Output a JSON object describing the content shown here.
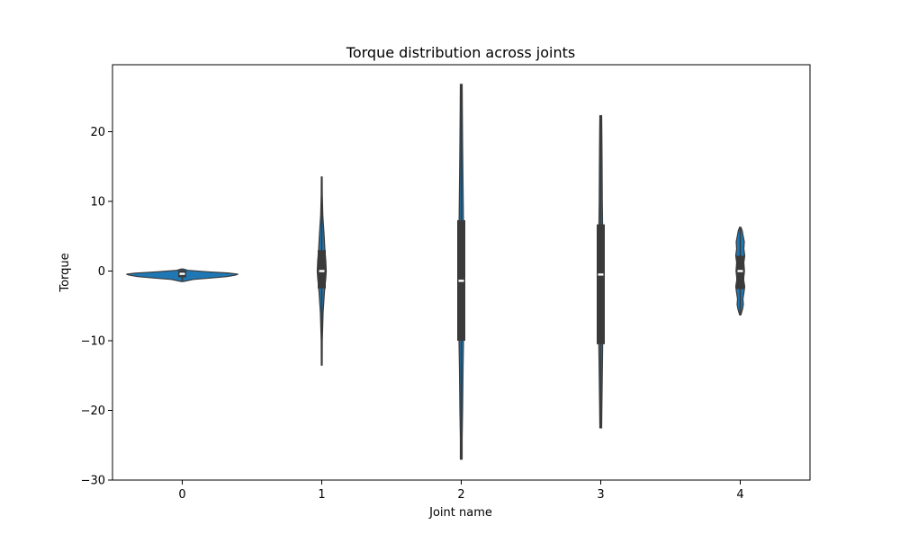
{
  "chart_data": {
    "type": "violin",
    "title": "Torque distribution across joints",
    "xlabel": "Joint name",
    "ylabel": "Torque",
    "categories": [
      "0",
      "1",
      "2",
      "3",
      "4"
    ],
    "ylim": [
      -30,
      30
    ],
    "yticks": [
      -30,
      -20,
      -10,
      0,
      10,
      20
    ],
    "ytick_labels": [
      "−30",
      "−20",
      "−10",
      "0",
      "10",
      "20"
    ],
    "grid": false,
    "legend": "none",
    "colors": {
      "violin_fill": "#1f77b4",
      "box": "#3a3a3a",
      "median": "#ffffff",
      "axes": "#000000"
    },
    "violins": [
      {
        "category": "0",
        "min": -1.5,
        "q1": -0.9,
        "median": -0.4,
        "q3": 0.1,
        "max": 0.3,
        "profile": [
          [
            -1.5,
            0.02
          ],
          [
            -1.2,
            0.2
          ],
          [
            -1.0,
            0.5
          ],
          [
            -0.8,
            0.8
          ],
          [
            -0.6,
            0.95
          ],
          [
            -0.45,
            1.0
          ],
          [
            -0.3,
            0.85
          ],
          [
            -0.1,
            0.45
          ],
          [
            0.1,
            0.1
          ],
          [
            0.3,
            0.02
          ]
        ]
      },
      {
        "category": "1",
        "min": -13.5,
        "q1": -2.5,
        "median": 0.0,
        "q3": 3.0,
        "max": 13.5,
        "profile": [
          [
            -13.5,
            0.1
          ],
          [
            -10,
            0.12
          ],
          [
            -6,
            0.3
          ],
          [
            -3,
            0.6
          ],
          [
            -1,
            0.9
          ],
          [
            0,
            1.0
          ],
          [
            1.5,
            0.9
          ],
          [
            3,
            0.7
          ],
          [
            5,
            0.55
          ],
          [
            8,
            0.25
          ],
          [
            11,
            0.12
          ],
          [
            13.5,
            0.1
          ]
        ]
      },
      {
        "category": "2",
        "min": -27.0,
        "q1": -10.0,
        "median": -1.4,
        "q3": 7.3,
        "max": 26.8,
        "profile": [
          [
            -27,
            0.2
          ],
          [
            -24,
            0.2
          ],
          [
            -20,
            0.3
          ],
          [
            -14,
            0.4
          ],
          [
            -10,
            0.5
          ],
          [
            -4,
            0.55
          ],
          [
            0,
            0.55
          ],
          [
            6,
            0.5
          ],
          [
            12,
            0.4
          ],
          [
            18,
            0.3
          ],
          [
            23,
            0.25
          ],
          [
            26.8,
            0.2
          ]
        ]
      },
      {
        "category": "3",
        "min": -22.5,
        "q1": -10.5,
        "median": -0.5,
        "q3": 6.7,
        "max": 22.3,
        "profile": [
          [
            -22.5,
            0.2
          ],
          [
            -20,
            0.25
          ],
          [
            -15,
            0.35
          ],
          [
            -10,
            0.45
          ],
          [
            -5,
            0.5
          ],
          [
            0,
            0.5
          ],
          [
            5,
            0.45
          ],
          [
            10,
            0.35
          ],
          [
            15,
            0.3
          ],
          [
            20,
            0.25
          ],
          [
            22.3,
            0.2
          ]
        ]
      },
      {
        "category": "4",
        "min": -6.3,
        "q1": -2.6,
        "median": 0.0,
        "q3": 2.2,
        "max": 6.3,
        "profile": [
          [
            -6.3,
            0.15
          ],
          [
            -5.5,
            0.5
          ],
          [
            -4.8,
            0.7
          ],
          [
            -4,
            0.6
          ],
          [
            -3,
            0.85
          ],
          [
            -2.2,
            1.0
          ],
          [
            -1.2,
            0.75
          ],
          [
            0,
            0.95
          ],
          [
            1.2,
            0.8
          ],
          [
            2.2,
            1.0
          ],
          [
            3.2,
            0.8
          ],
          [
            4.2,
            0.9
          ],
          [
            5.2,
            0.6
          ],
          [
            5.8,
            0.45
          ],
          [
            6.3,
            0.15
          ]
        ]
      }
    ]
  }
}
